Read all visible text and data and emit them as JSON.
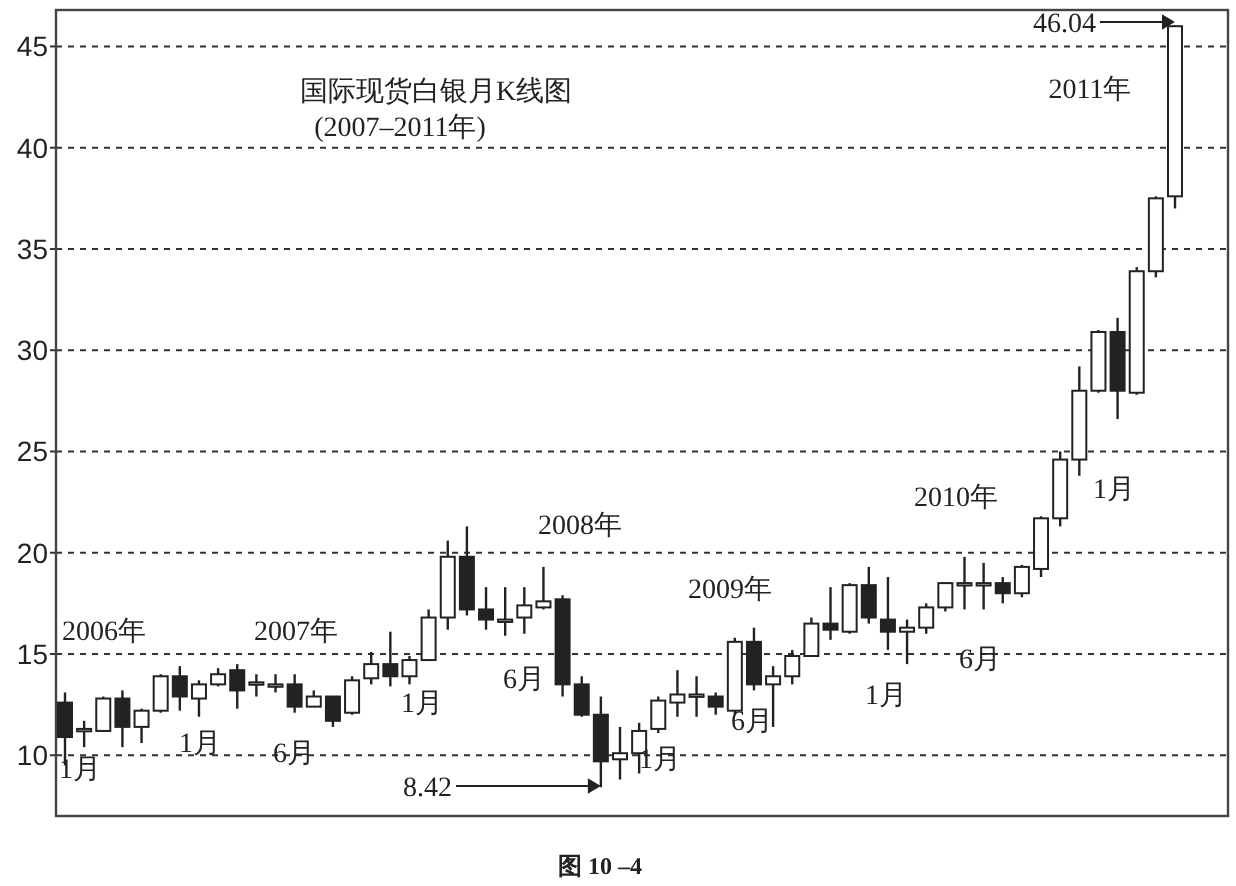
{
  "chart_data": {
    "type": "candlestick",
    "title": "国际现货白银月K线图",
    "subtitle": "(2007–2011年)",
    "categories": [
      null,
      null,
      null,
      null,
      null,
      null,
      null,
      null,
      null,
      null,
      null,
      null,
      null,
      null,
      null,
      null,
      null,
      null,
      null,
      null,
      null,
      null,
      null,
      null,
      null,
      null,
      null,
      null,
      null,
      null,
      null,
      null,
      null,
      null,
      null,
      null,
      null,
      null,
      null,
      null,
      null,
      null,
      null,
      null,
      null,
      null,
      null,
      null,
      null,
      null,
      null,
      null,
      null,
      null,
      null,
      null,
      null,
      null,
      null
    ],
    "ohlc": [
      [
        12.6,
        13.1,
        9.5,
        10.9
      ],
      [
        11.2,
        11.7,
        10.4,
        11.3
      ],
      [
        11.2,
        12.9,
        11.2,
        12.8
      ],
      [
        12.8,
        13.2,
        10.4,
        11.4
      ],
      [
        11.4,
        12.3,
        10.6,
        12.2
      ],
      [
        12.2,
        14.0,
        12.1,
        13.9
      ],
      [
        13.9,
        14.4,
        12.2,
        12.9
      ],
      [
        12.8,
        13.7,
        11.9,
        13.5
      ],
      [
        13.5,
        14.3,
        13.4,
        14.0
      ],
      [
        14.2,
        14.5,
        12.3,
        13.2
      ],
      [
        13.5,
        14.0,
        12.9,
        13.6
      ],
      [
        13.4,
        14.0,
        13.1,
        13.5
      ],
      [
        13.5,
        14.0,
        12.1,
        12.4
      ],
      [
        12.4,
        13.2,
        12.4,
        12.9
      ],
      [
        12.9,
        12.9,
        11.4,
        11.7
      ],
      [
        12.1,
        13.9,
        12.0,
        13.7
      ],
      [
        13.8,
        15.1,
        13.5,
        14.5
      ],
      [
        14.5,
        16.1,
        13.4,
        13.9
      ],
      [
        13.9,
        14.9,
        13.5,
        14.7
      ],
      [
        14.7,
        17.2,
        14.7,
        16.8
      ],
      [
        16.8,
        20.6,
        16.2,
        19.8
      ],
      [
        19.8,
        21.3,
        16.9,
        17.2
      ],
      [
        17.2,
        18.3,
        16.2,
        16.7
      ],
      [
        16.7,
        18.3,
        15.9,
        16.7
      ],
      [
        16.8,
        18.3,
        16.0,
        17.4
      ],
      [
        17.3,
        19.3,
        17.2,
        17.6
      ],
      [
        17.7,
        17.9,
        12.9,
        13.5
      ],
      [
        13.5,
        13.9,
        11.9,
        12.0
      ],
      [
        12.0,
        12.9,
        8.42,
        9.7
      ],
      [
        9.8,
        11.4,
        8.8,
        10.1
      ],
      [
        10.1,
        11.6,
        9.1,
        11.2
      ],
      [
        11.3,
        12.9,
        11.1,
        12.7
      ],
      [
        12.6,
        14.2,
        11.9,
        13.0
      ],
      [
        12.9,
        13.9,
        11.9,
        13.0
      ],
      [
        12.9,
        13.1,
        12.0,
        12.4
      ],
      [
        12.2,
        15.8,
        12.0,
        15.6
      ],
      [
        15.6,
        16.3,
        13.2,
        13.5
      ],
      [
        13.5,
        14.4,
        11.4,
        13.9
      ],
      [
        13.9,
        15.2,
        13.5,
        14.9
      ],
      [
        14.9,
        16.8,
        14.9,
        16.5
      ],
      [
        16.5,
        18.3,
        15.7,
        16.2
      ],
      [
        16.1,
        18.5,
        16.0,
        18.4
      ],
      [
        18.4,
        19.3,
        16.5,
        16.8
      ],
      [
        16.7,
        18.8,
        15.2,
        16.1
      ],
      [
        16.1,
        16.7,
        14.5,
        16.3
      ],
      [
        16.3,
        17.5,
        16.0,
        17.3
      ],
      [
        17.3,
        18.5,
        17.1,
        18.5
      ],
      [
        18.4,
        19.8,
        17.2,
        18.5
      ],
      [
        18.4,
        19.5,
        17.2,
        18.5
      ],
      [
        18.5,
        18.8,
        17.5,
        18.0
      ],
      [
        18.0,
        19.4,
        17.8,
        19.3
      ],
      [
        19.2,
        21.8,
        18.8,
        21.7
      ],
      [
        21.7,
        25.0,
        21.3,
        24.6
      ],
      [
        24.6,
        29.2,
        23.8,
        28.0
      ],
      [
        28.0,
        31.0,
        27.9,
        30.9
      ],
      [
        30.9,
        31.6,
        26.6,
        28.0
      ],
      [
        27.9,
        34.1,
        27.8,
        33.9
      ],
      [
        33.9,
        37.6,
        33.6,
        37.5
      ],
      [
        37.6,
        46.04,
        37.0,
        46.0
      ]
    ],
    "ylim": [
      7,
      46.8
    ],
    "yticks": [
      10,
      15,
      20,
      25,
      30,
      35,
      40,
      45
    ],
    "grid": "y",
    "annotations": [
      "2006年",
      "2007年",
      "2008年",
      "2009年",
      "2010年",
      "2011年",
      "1月",
      "1月",
      "6月",
      "1月",
      "6月",
      "1月",
      "6月",
      "1月",
      "6月",
      "1月",
      "8.42",
      "46.04",
      "图 10 –4"
    ]
  }
}
